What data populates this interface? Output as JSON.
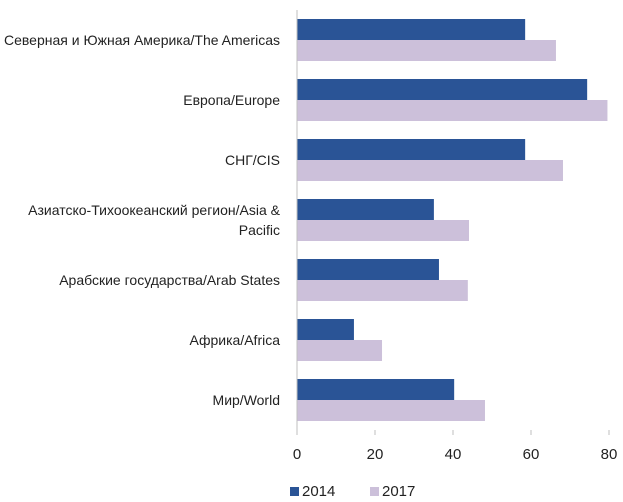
{
  "chart_data": {
    "type": "barh",
    "categories": [
      "Северная и Южная Америка/The Americas",
      "Европа/Europe",
      "СНГ/CIS",
      "Азиатско-Тихоокеанский регион/Asia & Pacific",
      "Арабские государства/Arab States",
      "Африка/Africa",
      "Мир/World"
    ],
    "series": [
      {
        "name": "2014",
        "color": "#2a5496",
        "values": [
          58.5,
          74.4,
          58.5,
          35.1,
          36.4,
          14.6,
          40.3
        ]
      },
      {
        "name": "2017",
        "color": "#ccc0da",
        "values": [
          66.4,
          79.6,
          68.2,
          44.1,
          43.8,
          21.8,
          48.2
        ]
      }
    ],
    "xlim": [
      0,
      80
    ],
    "xticks": [
      0,
      20,
      40,
      60,
      80
    ],
    "legend": "bottom"
  }
}
